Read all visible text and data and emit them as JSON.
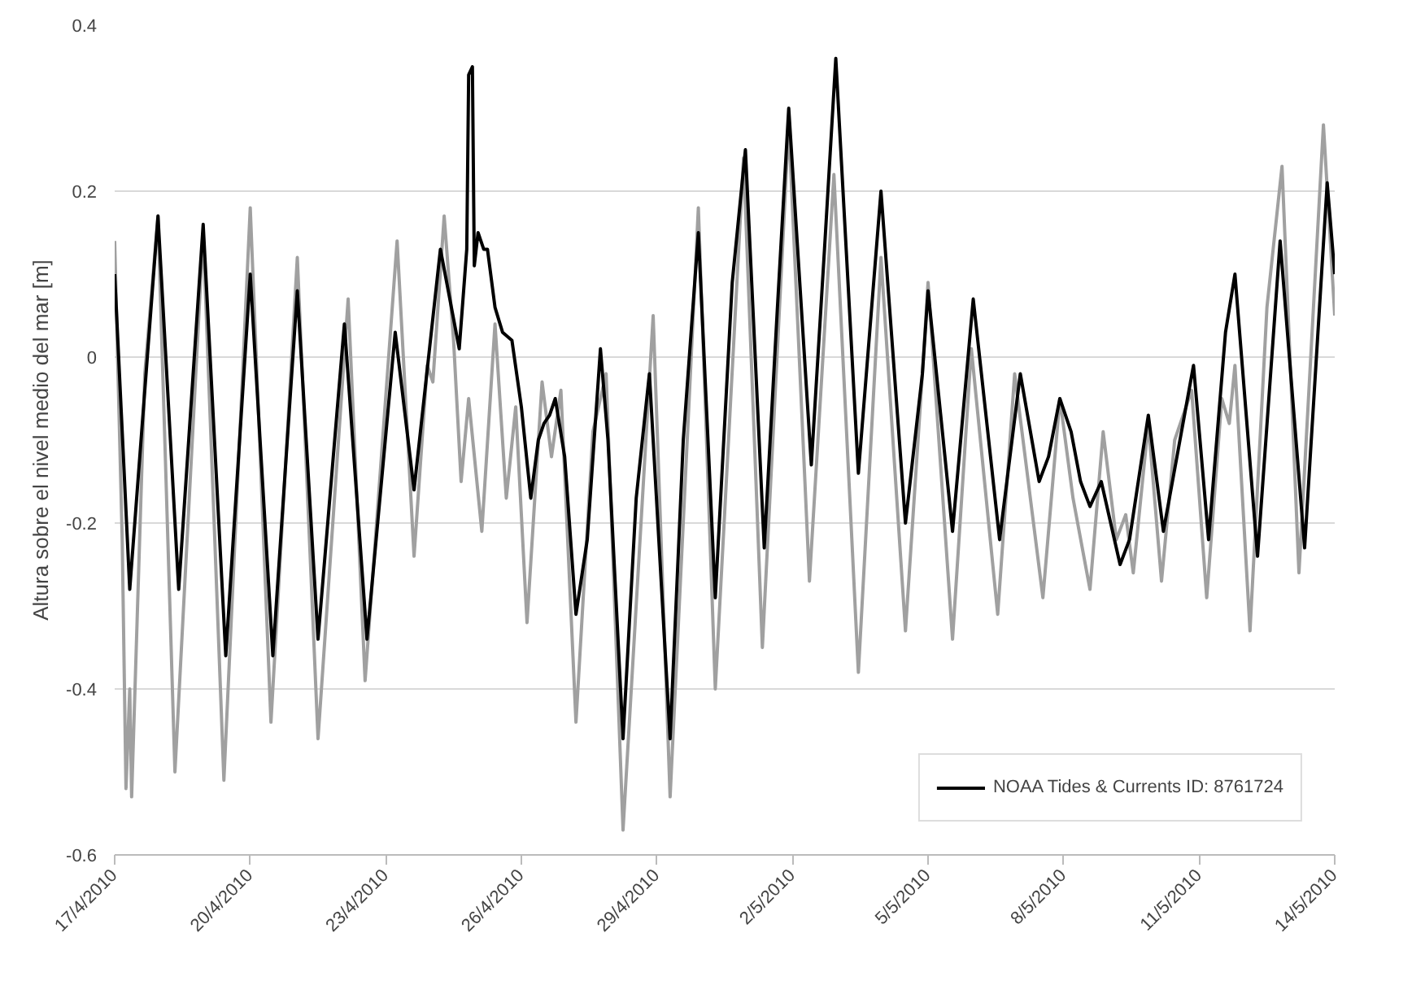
{
  "chart_data": {
    "type": "line",
    "ylabel": "Altura sobre el nivel medio del mar [m]",
    "xlim": [
      "2010-04-17",
      "2010-05-14"
    ],
    "xticks": [
      {
        "value": "2010-04-17",
        "label": "17/4/2010"
      },
      {
        "value": "2010-04-20",
        "label": "20/4/2010"
      },
      {
        "value": "2010-04-23",
        "label": "23/4/2010"
      },
      {
        "value": "2010-04-26",
        "label": "26/4/2010"
      },
      {
        "value": "2010-04-29",
        "label": "29/4/2010"
      },
      {
        "value": "2010-05-02",
        "label": "2/5/2010"
      },
      {
        "value": "2010-05-05",
        "label": "5/5/2010"
      },
      {
        "value": "2010-05-08",
        "label": "8/5/2010"
      },
      {
        "value": "2010-05-11",
        "label": "11/5/2010"
      },
      {
        "value": "2010-05-14",
        "label": "14/5/2010"
      }
    ],
    "ylim": [
      -0.6,
      0.4
    ],
    "yticks": [
      -0.6,
      -0.4,
      -0.2,
      0,
      0.2,
      0.4
    ],
    "grid": "y",
    "legend": "bottom right",
    "marker": "none",
    "line_style": "solid",
    "series": [
      {
        "name": "NOAA Tides & Currents ID: 8761724",
        "color": "#000000",
        "x": [
          "2010-04-17T00:00",
          "2010-04-17T08:00",
          "2010-04-17T23:00",
          "2010-04-18T10:00",
          "2010-04-18T23:00",
          "2010-04-19T11:00",
          "2010-04-20T00:00",
          "2010-04-20T12:00",
          "2010-04-21T01:00",
          "2010-04-21T12:00",
          "2010-04-22T02:00",
          "2010-04-22T14:00",
          "2010-04-23T05:00",
          "2010-04-23T15:00",
          "2010-04-24T05:00",
          "2010-04-24T15:00",
          "2010-04-24T18:00",
          "2010-04-24T19:00",
          "2010-04-24T20:00",
          "2010-04-24T22:00",
          "2010-04-24T23:00",
          "2010-04-25T01:00",
          "2010-04-25T04:00",
          "2010-04-25T06:00",
          "2010-04-25T10:00",
          "2010-04-25T14:00",
          "2010-04-25T19:00",
          "2010-04-26T00:00",
          "2010-04-26T05:00",
          "2010-04-26T09:00",
          "2010-04-26T12:00",
          "2010-04-26T15:00",
          "2010-04-26T18:00",
          "2010-04-26T23:00",
          "2010-04-27T05:00",
          "2010-04-27T11:00",
          "2010-04-27T18:00",
          "2010-04-27T22:00",
          "2010-04-28T06:00",
          "2010-04-28T13:00",
          "2010-04-28T20:00",
          "2010-04-29T07:00",
          "2010-04-29T14:00",
          "2010-04-29T22:00",
          "2010-04-30T07:00",
          "2010-04-30T16:00",
          "2010-04-30T23:00",
          "2010-05-01T09:00",
          "2010-05-01T16:00",
          "2010-05-01T22:00",
          "2010-05-02T10:00",
          "2010-05-02T17:00",
          "2010-05-02T23:00",
          "2010-05-03T11:00",
          "2010-05-03T23:00",
          "2010-05-04T12:00",
          "2010-05-04T21:00",
          "2010-05-05T00:00",
          "2010-05-05T13:00",
          "2010-05-06T00:00",
          "2010-05-06T14:00",
          "2010-05-07T01:00",
          "2010-05-07T11:00",
          "2010-05-07T16:00",
          "2010-05-07T22:00",
          "2010-05-08T04:00",
          "2010-05-08T09:00",
          "2010-05-08T14:00",
          "2010-05-08T20:00",
          "2010-05-09T06:00",
          "2010-05-09T11:00",
          "2010-05-09T21:00",
          "2010-05-10T05:00",
          "2010-05-10T21:00",
          "2010-05-11T05:00",
          "2010-05-11T14:00",
          "2010-05-11T19:00",
          "2010-05-12T07:00",
          "2010-05-12T19:00",
          "2010-05-13T08:00",
          "2010-05-13T20:00",
          "2010-05-14T00:00"
        ],
        "values": [
          0.1,
          -0.28,
          0.17,
          -0.28,
          0.16,
          -0.36,
          0.1,
          -0.36,
          0.08,
          -0.34,
          0.04,
          -0.34,
          0.03,
          -0.16,
          0.13,
          0.01,
          0.1,
          0.13,
          0.34,
          0.35,
          0.11,
          0.15,
          0.13,
          0.13,
          0.06,
          0.03,
          0.02,
          -0.06,
          -0.17,
          -0.1,
          -0.08,
          -0.07,
          -0.05,
          -0.12,
          -0.31,
          -0.22,
          0.01,
          -0.1,
          -0.46,
          -0.17,
          -0.02,
          -0.46,
          -0.1,
          0.15,
          -0.29,
          0.09,
          0.25,
          -0.23,
          0.06,
          0.3,
          -0.13,
          0.13,
          0.36,
          -0.14,
          0.2,
          -0.2,
          -0.02,
          0.08,
          -0.21,
          0.07,
          -0.22,
          -0.02,
          -0.15,
          -0.12,
          -0.05,
          -0.09,
          -0.15,
          -0.18,
          -0.15,
          -0.25,
          -0.22,
          -0.07,
          -0.21,
          -0.01,
          -0.22,
          0.03,
          0.1,
          -0.24,
          0.14,
          -0.23,
          0.21,
          0.1
        ]
      },
      {
        "color": "#a0a0a0",
        "x": [
          "2010-04-17T00:00",
          "2010-04-17T04:00",
          "2010-04-17T06:00",
          "2010-04-17T08:00",
          "2010-04-17T09:00",
          "2010-04-17T16:00",
          "2010-04-17T23:00",
          "2010-04-18T08:00",
          "2010-04-18T23:00",
          "2010-04-19T10:00",
          "2010-04-20T00:00",
          "2010-04-20T11:00",
          "2010-04-21T01:00",
          "2010-04-21T12:00",
          "2010-04-22T04:00",
          "2010-04-22T13:00",
          "2010-04-23T06:00",
          "2010-04-23T15:00",
          "2010-04-23T22:00",
          "2010-04-24T01:00",
          "2010-04-24T07:00",
          "2010-04-24T12:00",
          "2010-04-24T16:00",
          "2010-04-24T20:00",
          "2010-04-25T03:00",
          "2010-04-25T10:00",
          "2010-04-25T16:00",
          "2010-04-25T21:00",
          "2010-04-26T03:00",
          "2010-04-26T11:00",
          "2010-04-26T16:00",
          "2010-04-26T21:00",
          "2010-04-27T05:00",
          "2010-04-27T14:00",
          "2010-04-27T21:00",
          "2010-04-28T06:00",
          "2010-04-28T22:00",
          "2010-04-29T07:00",
          "2010-04-29T22:00",
          "2010-04-30T07:00",
          "2010-04-30T22:00",
          "2010-05-01T08:00",
          "2010-05-01T22:00",
          "2010-05-02T09:00",
          "2010-05-02T22:00",
          "2010-05-03T11:00",
          "2010-05-03T23:00",
          "2010-05-04T12:00",
          "2010-05-04T21:00",
          "2010-05-05T00:00",
          "2010-05-05T13:00",
          "2010-05-05T23:00",
          "2010-05-06T13:00",
          "2010-05-06T22:00",
          "2010-05-07T13:00",
          "2010-05-07T22:00",
          "2010-05-08T05:00",
          "2010-05-08T14:00",
          "2010-05-08T21:00",
          "2010-05-09T04:00",
          "2010-05-09T09:00",
          "2010-05-09T13:00",
          "2010-05-09T21:00",
          "2010-05-10T04:00",
          "2010-05-10T11:00",
          "2010-05-10T20:00",
          "2010-05-11T04:00",
          "2010-05-11T12:00",
          "2010-05-11T16:00",
          "2010-05-11T19:00",
          "2010-05-12T03:00",
          "2010-05-12T12:00",
          "2010-05-12T20:00",
          "2010-05-13T05:00",
          "2010-05-13T18:00",
          "2010-05-14T00:00"
        ],
        "values": [
          0.14,
          -0.22,
          -0.52,
          -0.4,
          -0.53,
          -0.02,
          0.17,
          -0.5,
          0.15,
          -0.51,
          0.18,
          -0.44,
          0.12,
          -0.46,
          0.07,
          -0.39,
          0.14,
          -0.24,
          -0.01,
          -0.03,
          0.17,
          0.02,
          -0.15,
          -0.05,
          -0.21,
          0.04,
          -0.17,
          -0.06,
          -0.32,
          -0.03,
          -0.12,
          -0.04,
          -0.44,
          -0.09,
          -0.02,
          -0.57,
          0.05,
          -0.53,
          0.18,
          -0.4,
          0.24,
          -0.35,
          0.28,
          -0.27,
          0.22,
          -0.38,
          0.12,
          -0.33,
          -0.02,
          0.09,
          -0.34,
          0.01,
          -0.31,
          -0.02,
          -0.29,
          -0.05,
          -0.17,
          -0.28,
          -0.09,
          -0.22,
          -0.19,
          -0.26,
          -0.08,
          -0.27,
          -0.1,
          -0.04,
          -0.29,
          -0.05,
          -0.08,
          -0.01,
          -0.33,
          0.06,
          0.23,
          -0.26,
          0.28,
          0.05
        ]
      }
    ]
  }
}
